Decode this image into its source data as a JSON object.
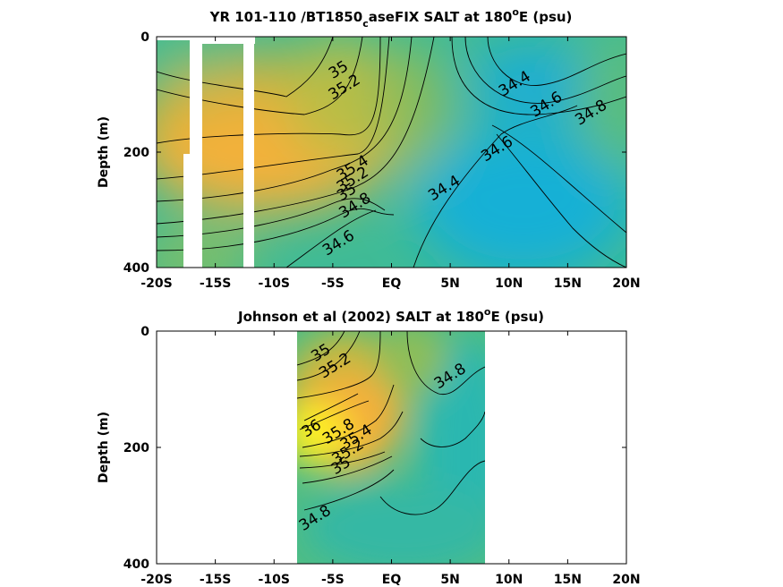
{
  "chart_data": [
    {
      "type": "contour",
      "title_prefix": "YR 101-110 /BT1850",
      "title_subscript": "c",
      "title_suffix": "aseFIX SALT at 180",
      "title_superscript": "o",
      "title_end": "E (psu)",
      "xlabel": "",
      "ylabel": "Depth (m)",
      "xlim": [
        -20,
        20
      ],
      "ylim": [
        0,
        400
      ],
      "y_reversed": true,
      "x_ticks": [
        -20,
        -15,
        -10,
        -5,
        0,
        5,
        10,
        15,
        20
      ],
      "x_tick_labels": [
        "-20S",
        "-15S",
        "-10S",
        "-5S",
        "EQ",
        "5N",
        "10N",
        "15N",
        "20N"
      ],
      "y_ticks": [
        0,
        200,
        400
      ],
      "y_tick_labels": [
        "0",
        "200",
        "400"
      ],
      "contour_labels": [
        {
          "text": "35",
          "lat": -4.5,
          "depth": 58
        },
        {
          "text": "35.2",
          "lat": -4,
          "depth": 88
        },
        {
          "text": "35.4",
          "lat": -3.3,
          "depth": 228
        },
        {
          "text": "35.2",
          "lat": -3.3,
          "depth": 248
        },
        {
          "text": "35",
          "lat": -3.8,
          "depth": 270
        },
        {
          "text": "34.8",
          "lat": -3.1,
          "depth": 293
        },
        {
          "text": "34.6",
          "lat": -4.5,
          "depth": 358
        },
        {
          "text": "34.4",
          "lat": 4.5,
          "depth": 263
        },
        {
          "text": "34.4",
          "lat": 10.5,
          "depth": 82
        },
        {
          "text": "34.6",
          "lat": 13.2,
          "depth": 118
        },
        {
          "text": "34.8",
          "lat": 17,
          "depth": 132
        },
        {
          "text": "34.6",
          "lat": 9,
          "depth": 195
        }
      ]
    },
    {
      "type": "contour",
      "title_prefix": "Johnson et al (2002) SALT at 180",
      "title_superscript": "o",
      "title_end": "E (psu)",
      "xlabel": "",
      "ylabel": "Depth (m)",
      "xlim": [
        -20,
        20
      ],
      "ylim": [
        0,
        400
      ],
      "y_reversed": true,
      "data_extent_lat": [
        -8,
        8
      ],
      "x_ticks": [
        -20,
        -15,
        -10,
        -5,
        0,
        5,
        10,
        15,
        20
      ],
      "x_tick_labels": [
        "-20S",
        "-15S",
        "-10S",
        "-5S",
        "EQ",
        "5N",
        "10N",
        "15N",
        "20N"
      ],
      "y_ticks": [
        0,
        200,
        400
      ],
      "y_tick_labels": [
        "0",
        "200",
        "400"
      ],
      "contour_labels": [
        {
          "text": "35",
          "lat": -6,
          "depth": 38
        },
        {
          "text": "35.2",
          "lat": -4.8,
          "depth": 60
        },
        {
          "text": "34.8",
          "lat": 5,
          "depth": 78
        },
        {
          "text": "36",
          "lat": -6.8,
          "depth": 168
        },
        {
          "text": "35.8",
          "lat": -4.5,
          "depth": 173
        },
        {
          "text": "35.4",
          "lat": -3,
          "depth": 183
        },
        {
          "text": "35.2",
          "lat": -3.7,
          "depth": 208
        },
        {
          "text": "35",
          "lat": -4.3,
          "depth": 232
        },
        {
          "text": "34.8",
          "lat": -6.5,
          "depth": 322
        }
      ]
    }
  ]
}
